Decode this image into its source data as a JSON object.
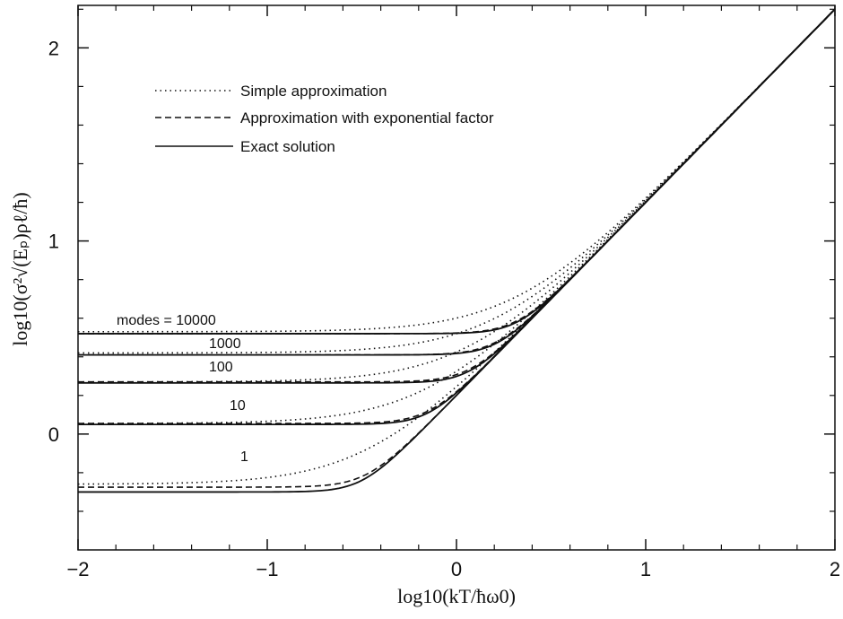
{
  "chart_data": {
    "type": "line",
    "title": "",
    "xlabel": "log10(kT/ħω0)",
    "ylabel": "log10(σ²√(Eₚ)ρℓ/ħ)",
    "xlim": [
      -2,
      2
    ],
    "ylim": [
      -0.6,
      2.22
    ],
    "xticks": [
      -2,
      -1,
      0,
      1,
      2
    ],
    "xtick_labels": [
      "−2",
      "−1",
      "0",
      "1",
      "2"
    ],
    "yticks": [
      0,
      1,
      2
    ],
    "ytick_labels": [
      "0",
      "1",
      "2"
    ],
    "grid": false,
    "legend": {
      "placement": "top-left",
      "entries": [
        {
          "label": "Simple approximation",
          "style": "dotted"
        },
        {
          "label": "Approximation with exponential factor",
          "style": "dashed"
        },
        {
          "label": "Exact solution",
          "style": "solid"
        }
      ]
    },
    "annotations": [
      "modes = 10000",
      "1000",
      "100",
      "10",
      "1"
    ],
    "series": [
      {
        "modes": 10000,
        "exact_low": 0.52,
        "dashed_low": 0.52,
        "simple_low": 0.53
      },
      {
        "modes": 1000,
        "exact_low": 0.41,
        "dashed_low": 0.41,
        "simple_low": 0.42
      },
      {
        "modes": 100,
        "exact_low": 0.265,
        "dashed_low": 0.27,
        "simple_low": 0.27
      },
      {
        "modes": 10,
        "exact_low": 0.05,
        "dashed_low": 0.055,
        "simple_low": 0.055
      },
      {
        "modes": 1,
        "exact_low": -0.3,
        "dashed_low": -0.275,
        "simple_low": -0.26
      }
    ],
    "high_temperature_asymptote": {
      "slope": 1,
      "intercept": 0.2
    }
  }
}
